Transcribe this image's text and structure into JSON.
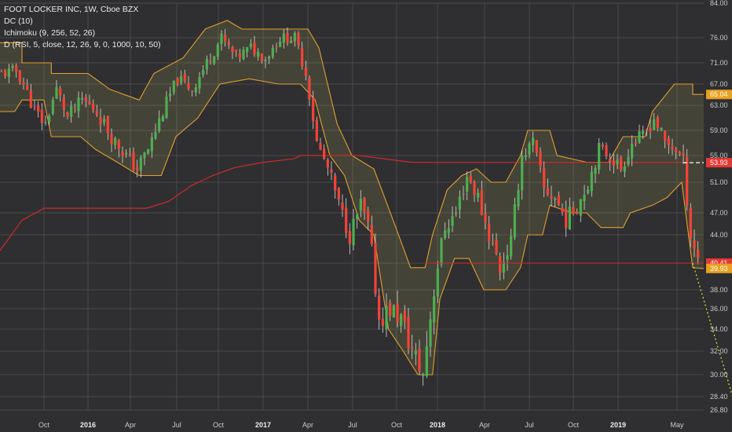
{
  "legend": {
    "symbol": "FOOT LOCKER INC, 1W, Cboe BZX",
    "dc": "DC (10)",
    "ichimoku": "Ichimoku (9, 256, 52, 26)",
    "divergence": "D (RSI, 5, close, 12, 26, 9, 0, 1000, 10, 50)"
  },
  "colors": {
    "background": "#2f2f31",
    "grid": "#4a4a4d",
    "up": "#4caf50",
    "down": "#f44336",
    "channel": "#e0a030",
    "cloud": "#c9c05a",
    "baseline": "#cc2b2b",
    "forecast": "#c8e030"
  },
  "chart_data": {
    "type": "candlestick",
    "ylim": [
      26.8,
      84.0
    ],
    "y_ticks": [
      "84.00",
      "76.00",
      "71.00",
      "67.00",
      "63.00",
      "59.00",
      "55.00",
      "51.00",
      "47.00",
      "44.00",
      "40.41",
      "38.00",
      "36.00",
      "34.00",
      "32.00",
      "30.00",
      "28.40",
      "26.80"
    ],
    "x_ticks": [
      {
        "label": "Oct",
        "year": false
      },
      {
        "label": "2016",
        "year": true
      },
      {
        "label": "Apr",
        "year": false
      },
      {
        "label": "Jul",
        "year": false
      },
      {
        "label": "Oct",
        "year": false
      },
      {
        "label": "2017",
        "year": true
      },
      {
        "label": "Apr",
        "year": false
      },
      {
        "label": "Jul",
        "year": false
      },
      {
        "label": "Oct",
        "year": false
      },
      {
        "label": "2018",
        "year": true
      },
      {
        "label": "Apr",
        "year": false
      },
      {
        "label": "Jul",
        "year": false
      },
      {
        "label": "Oct",
        "year": false
      },
      {
        "label": "2019",
        "year": true
      },
      {
        "label": "May",
        "year": false
      }
    ],
    "price_labels": [
      {
        "label": "65.04",
        "value": 65.04,
        "color": "#e8a020"
      },
      {
        "label": "53.97",
        "value": 53.97,
        "color": "none"
      },
      {
        "label": "53.93",
        "value": 53.93,
        "color": "#e53935"
      },
      {
        "label": "40.41",
        "value": 40.41,
        "color": "#e53935"
      },
      {
        "label": "39.93",
        "value": 39.93,
        "color": "#e8a020"
      }
    ],
    "close_path": [
      {
        "t": 0,
        "v": 69
      },
      {
        "t": 4,
        "v": 69.5
      },
      {
        "t": 6,
        "v": 67
      },
      {
        "t": 9,
        "v": 62
      },
      {
        "t": 12,
        "v": 60
      },
      {
        "t": 15,
        "v": 66
      },
      {
        "t": 18,
        "v": 61
      },
      {
        "t": 22,
        "v": 64
      },
      {
        "t": 26,
        "v": 62
      },
      {
        "t": 30,
        "v": 58
      },
      {
        "t": 34,
        "v": 55
      },
      {
        "t": 37,
        "v": 53
      },
      {
        "t": 40,
        "v": 56
      },
      {
        "t": 44,
        "v": 62
      },
      {
        "t": 48,
        "v": 68
      },
      {
        "t": 52,
        "v": 66
      },
      {
        "t": 56,
        "v": 71
      },
      {
        "t": 60,
        "v": 76
      },
      {
        "t": 64,
        "v": 72
      },
      {
        "t": 68,
        "v": 74
      },
      {
        "t": 72,
        "v": 72
      },
      {
        "t": 76,
        "v": 76
      },
      {
        "t": 80,
        "v": 76
      },
      {
        "t": 83,
        "v": 69
      },
      {
        "t": 86,
        "v": 57
      },
      {
        "t": 89,
        "v": 53
      },
      {
        "t": 92,
        "v": 48
      },
      {
        "t": 95,
        "v": 44
      },
      {
        "t": 98,
        "v": 48
      },
      {
        "t": 100,
        "v": 45
      },
      {
        "t": 103,
        "v": 35
      },
      {
        "t": 106,
        "v": 36
      },
      {
        "t": 109,
        "v": 35
      },
      {
        "t": 112,
        "v": 32
      },
      {
        "t": 115,
        "v": 30
      },
      {
        "t": 118,
        "v": 38
      },
      {
        "t": 121,
        "v": 45
      },
      {
        "t": 124,
        "v": 47
      },
      {
        "t": 127,
        "v": 52
      },
      {
        "t": 130,
        "v": 49
      },
      {
        "t": 133,
        "v": 44
      },
      {
        "t": 136,
        "v": 40
      },
      {
        "t": 139,
        "v": 43
      },
      {
        "t": 142,
        "v": 55
      },
      {
        "t": 145,
        "v": 57
      },
      {
        "t": 148,
        "v": 50
      },
      {
        "t": 151,
        "v": 49
      },
      {
        "t": 154,
        "v": 46
      },
      {
        "t": 157,
        "v": 48
      },
      {
        "t": 160,
        "v": 51
      },
      {
        "t": 163,
        "v": 56
      },
      {
        "t": 166,
        "v": 55
      },
      {
        "t": 169,
        "v": 53
      },
      {
        "t": 172,
        "v": 57
      },
      {
        "t": 175,
        "v": 58
      },
      {
        "t": 178,
        "v": 61
      },
      {
        "t": 181,
        "v": 57
      },
      {
        "t": 184,
        "v": 56
      },
      {
        "t": 186,
        "v": 54
      },
      {
        "t": 188,
        "v": 44
      },
      {
        "t": 190,
        "v": 41
      }
    ],
    "upper_channel": [
      {
        "t": 0,
        "v": 75
      },
      {
        "t": 6,
        "v": 75
      },
      {
        "t": 6,
        "v": 71
      },
      {
        "t": 14,
        "v": 71
      },
      {
        "t": 14,
        "v": 69
      },
      {
        "t": 24,
        "v": 69
      },
      {
        "t": 30,
        "v": 66
      },
      {
        "t": 38,
        "v": 64
      },
      {
        "t": 42,
        "v": 69
      },
      {
        "t": 50,
        "v": 72
      },
      {
        "t": 56,
        "v": 78
      },
      {
        "t": 62,
        "v": 80
      },
      {
        "t": 66,
        "v": 78
      },
      {
        "t": 72,
        "v": 78
      },
      {
        "t": 84,
        "v": 78
      },
      {
        "t": 87,
        "v": 74
      },
      {
        "t": 92,
        "v": 60
      },
      {
        "t": 96,
        "v": 55
      },
      {
        "t": 102,
        "v": 53
      },
      {
        "t": 108,
        "v": 45
      },
      {
        "t": 112,
        "v": 40
      },
      {
        "t": 116,
        "v": 40
      },
      {
        "t": 118,
        "v": 44
      },
      {
        "t": 122,
        "v": 50
      },
      {
        "t": 126,
        "v": 52
      },
      {
        "t": 130,
        "v": 53
      },
      {
        "t": 134,
        "v": 51
      },
      {
        "t": 138,
        "v": 51
      },
      {
        "t": 142,
        "v": 55
      },
      {
        "t": 144,
        "v": 59
      },
      {
        "t": 150,
        "v": 59
      },
      {
        "t": 152,
        "v": 55
      },
      {
        "t": 160,
        "v": 54
      },
      {
        "t": 166,
        "v": 54
      },
      {
        "t": 170,
        "v": 58
      },
      {
        "t": 176,
        "v": 58
      },
      {
        "t": 178,
        "v": 62
      },
      {
        "t": 184,
        "v": 67
      },
      {
        "t": 189,
        "v": 67
      },
      {
        "t": 189,
        "v": 65.04
      },
      {
        "t": 192,
        "v": 65.04
      }
    ],
    "lower_channel": [
      {
        "t": 0,
        "v": 62
      },
      {
        "t": 4,
        "v": 62
      },
      {
        "t": 6,
        "v": 64
      },
      {
        "t": 12,
        "v": 64
      },
      {
        "t": 14,
        "v": 58
      },
      {
        "t": 22,
        "v": 58
      },
      {
        "t": 26,
        "v": 56
      },
      {
        "t": 32,
        "v": 54
      },
      {
        "t": 38,
        "v": 52
      },
      {
        "t": 44,
        "v": 52
      },
      {
        "t": 48,
        "v": 58
      },
      {
        "t": 54,
        "v": 61
      },
      {
        "t": 60,
        "v": 67
      },
      {
        "t": 68,
        "v": 68
      },
      {
        "t": 76,
        "v": 67
      },
      {
        "t": 82,
        "v": 67
      },
      {
        "t": 86,
        "v": 64
      },
      {
        "t": 90,
        "v": 55
      },
      {
        "t": 94,
        "v": 52
      },
      {
        "t": 98,
        "v": 46
      },
      {
        "t": 102,
        "v": 44
      },
      {
        "t": 106,
        "v": 34
      },
      {
        "t": 110,
        "v": 32
      },
      {
        "t": 114,
        "v": 30
      },
      {
        "t": 118,
        "v": 30
      },
      {
        "t": 120,
        "v": 37
      },
      {
        "t": 124,
        "v": 41
      },
      {
        "t": 128,
        "v": 41
      },
      {
        "t": 132,
        "v": 38
      },
      {
        "t": 138,
        "v": 38
      },
      {
        "t": 142,
        "v": 40
      },
      {
        "t": 144,
        "v": 44
      },
      {
        "t": 148,
        "v": 44
      },
      {
        "t": 150,
        "v": 48
      },
      {
        "t": 156,
        "v": 47
      },
      {
        "t": 160,
        "v": 47
      },
      {
        "t": 164,
        "v": 45
      },
      {
        "t": 170,
        "v": 45
      },
      {
        "t": 172,
        "v": 47
      },
      {
        "t": 178,
        "v": 48
      },
      {
        "t": 182,
        "v": 49
      },
      {
        "t": 186,
        "v": 51
      },
      {
        "t": 189,
        "v": 40
      },
      {
        "t": 192,
        "v": 39.93
      }
    ],
    "baseline": [
      {
        "t": 0,
        "v": 42
      },
      {
        "t": 6,
        "v": 46
      },
      {
        "t": 12,
        "v": 47.6
      },
      {
        "t": 40,
        "v": 47.6
      },
      {
        "t": 46,
        "v": 48.5
      },
      {
        "t": 52,
        "v": 50.5
      },
      {
        "t": 58,
        "v": 52
      },
      {
        "t": 64,
        "v": 53.2
      },
      {
        "t": 72,
        "v": 54
      },
      {
        "t": 80,
        "v": 54.5
      },
      {
        "t": 82,
        "v": 55
      },
      {
        "t": 98,
        "v": 55
      },
      {
        "t": 112,
        "v": 54
      },
      {
        "t": 120,
        "v": 53.97
      },
      {
        "t": 188,
        "v": 53.97
      }
    ],
    "support_level": {
      "value": 40.41,
      "from_t": 116,
      "to_t": 192
    },
    "forecast": [
      {
        "t": 189,
        "v": 40.41
      },
      {
        "t": 201,
        "v": 26.8
      }
    ]
  }
}
